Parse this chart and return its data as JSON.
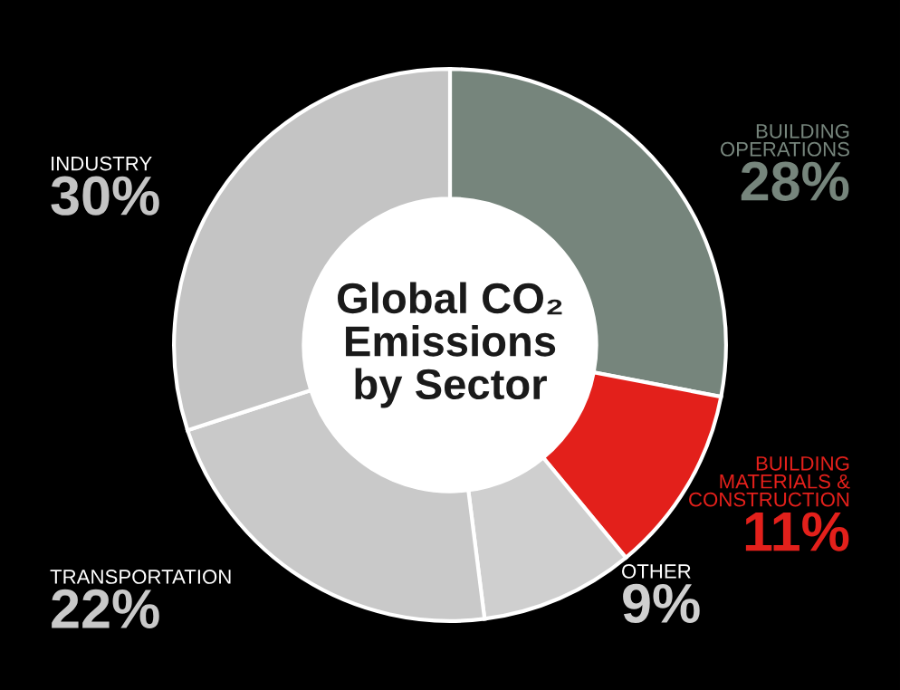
{
  "chart_data": {
    "type": "donut",
    "title": "Global CO₂\nEmissions\nby Sector",
    "categories": [
      "BUILDING\nOPERATIONS",
      "BUILDING\nMATERIALS &\nCONSTRUCTION",
      "OTHER",
      "TRANSPORTATION",
      "INDUSTRY"
    ],
    "values": [
      28,
      11,
      9,
      22,
      30
    ],
    "value_labels": [
      "28%",
      "11%",
      "9%",
      "22%",
      "30%"
    ],
    "colors": [
      "#76857c",
      "#e3201b",
      "#cfcfcf",
      "#c9c9c9",
      "#c4c4c4"
    ],
    "legend": false
  }
}
